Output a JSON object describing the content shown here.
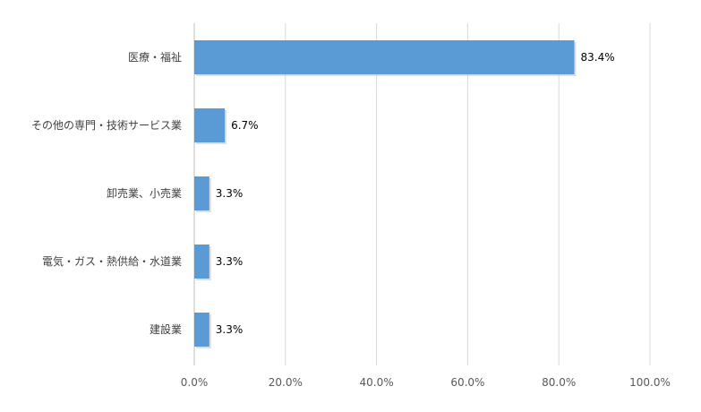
{
  "chart_data": {
    "type": "bar",
    "orientation": "horizontal",
    "categories": [
      "医療・福祉",
      "その他の専門・技術サービス業",
      "卸売業、小売業",
      "電気・ガス・熱供給・水道業",
      "建設業"
    ],
    "values": [
      83.4,
      6.7,
      3.3,
      3.3,
      3.3
    ],
    "data_labels": [
      "83.4%",
      "6.7%",
      "3.3%",
      "3.3%",
      "3.3%"
    ],
    "x_ticks": [
      "0.0%",
      "20.0%",
      "40.0%",
      "60.0%",
      "80.0%",
      "100.0%"
    ],
    "xlim": [
      0,
      100
    ],
    "grid": true,
    "title": "",
    "xlabel": "",
    "ylabel": "",
    "colors": {
      "bar": "#5b9bd5",
      "grid": "#d9d9d9"
    }
  }
}
